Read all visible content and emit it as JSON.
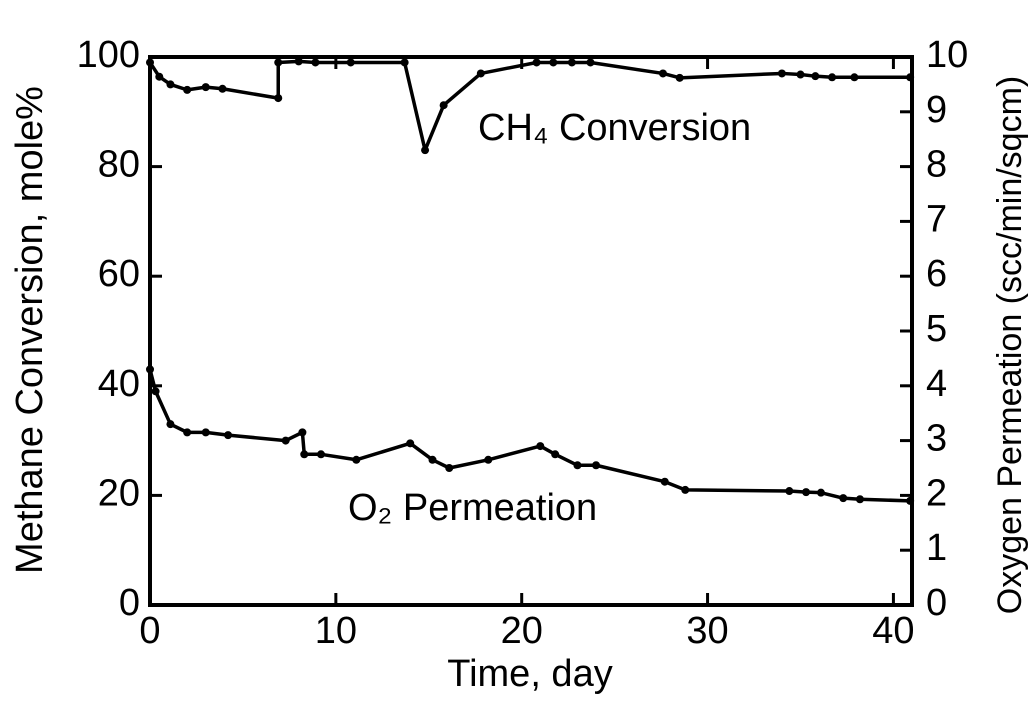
{
  "chart_data": {
    "type": "line",
    "x_label": "Time, day",
    "y_label": "Methane Conversion, mole%",
    "y2_label": "Oxygen Permeation (scc/min/sqcm)",
    "xlim": [
      0,
      41
    ],
    "xticks": [
      0,
      10,
      20,
      30,
      40
    ],
    "ylim": [
      0,
      100
    ],
    "yticks": [
      0,
      20,
      40,
      60,
      80,
      100
    ],
    "y2lim": [
      0,
      10
    ],
    "y2ticks": [
      0,
      1,
      2,
      3,
      4,
      5,
      6,
      7,
      8,
      9,
      10
    ],
    "series": [
      {
        "name": "CH₄ Conversion",
        "color": "#000000",
        "x": [
          0,
          0.5,
          1.1,
          2.0,
          3.0,
          3.9,
          6.9,
          6.9,
          8.0,
          8.9,
          10.8,
          13.7,
          14.8,
          15.8,
          17.8,
          20.8,
          21.7,
          22.7,
          23.7,
          27.6,
          28.5,
          34.0,
          35.0,
          35.8,
          36.7,
          37.9,
          40.9
        ],
        "values": [
          99,
          96.4,
          95,
          94,
          94.5,
          94.2,
          92.5,
          99,
          99.2,
          99,
          99,
          99,
          83,
          91.2,
          97,
          99,
          99,
          99,
          99,
          97,
          96.2,
          97,
          96.8,
          96.5,
          96.3,
          96.3,
          96.3
        ]
      },
      {
        "name": "O₂ Permeation",
        "color": "#000000",
        "axis": "y2",
        "x": [
          0,
          0.3,
          1.1,
          2.0,
          3.0,
          4.2,
          7.3,
          8.2,
          8.3,
          9.2,
          11.1,
          14.0,
          15.2,
          16.1,
          18.2,
          21.0,
          21.8,
          23.0,
          24.0,
          27.7,
          28.8,
          34.4,
          35.3,
          36.1,
          37.3,
          38.2,
          40.9
        ],
        "values": [
          4.3,
          3.9,
          3.3,
          3.15,
          3.15,
          3.1,
          3.0,
          3.15,
          2.75,
          2.75,
          2.65,
          2.95,
          2.65,
          2.5,
          2.65,
          2.9,
          2.75,
          2.55,
          2.55,
          2.25,
          2.1,
          2.08,
          2.06,
          2.05,
          1.95,
          1.93,
          1.9
        ]
      }
    ]
  }
}
